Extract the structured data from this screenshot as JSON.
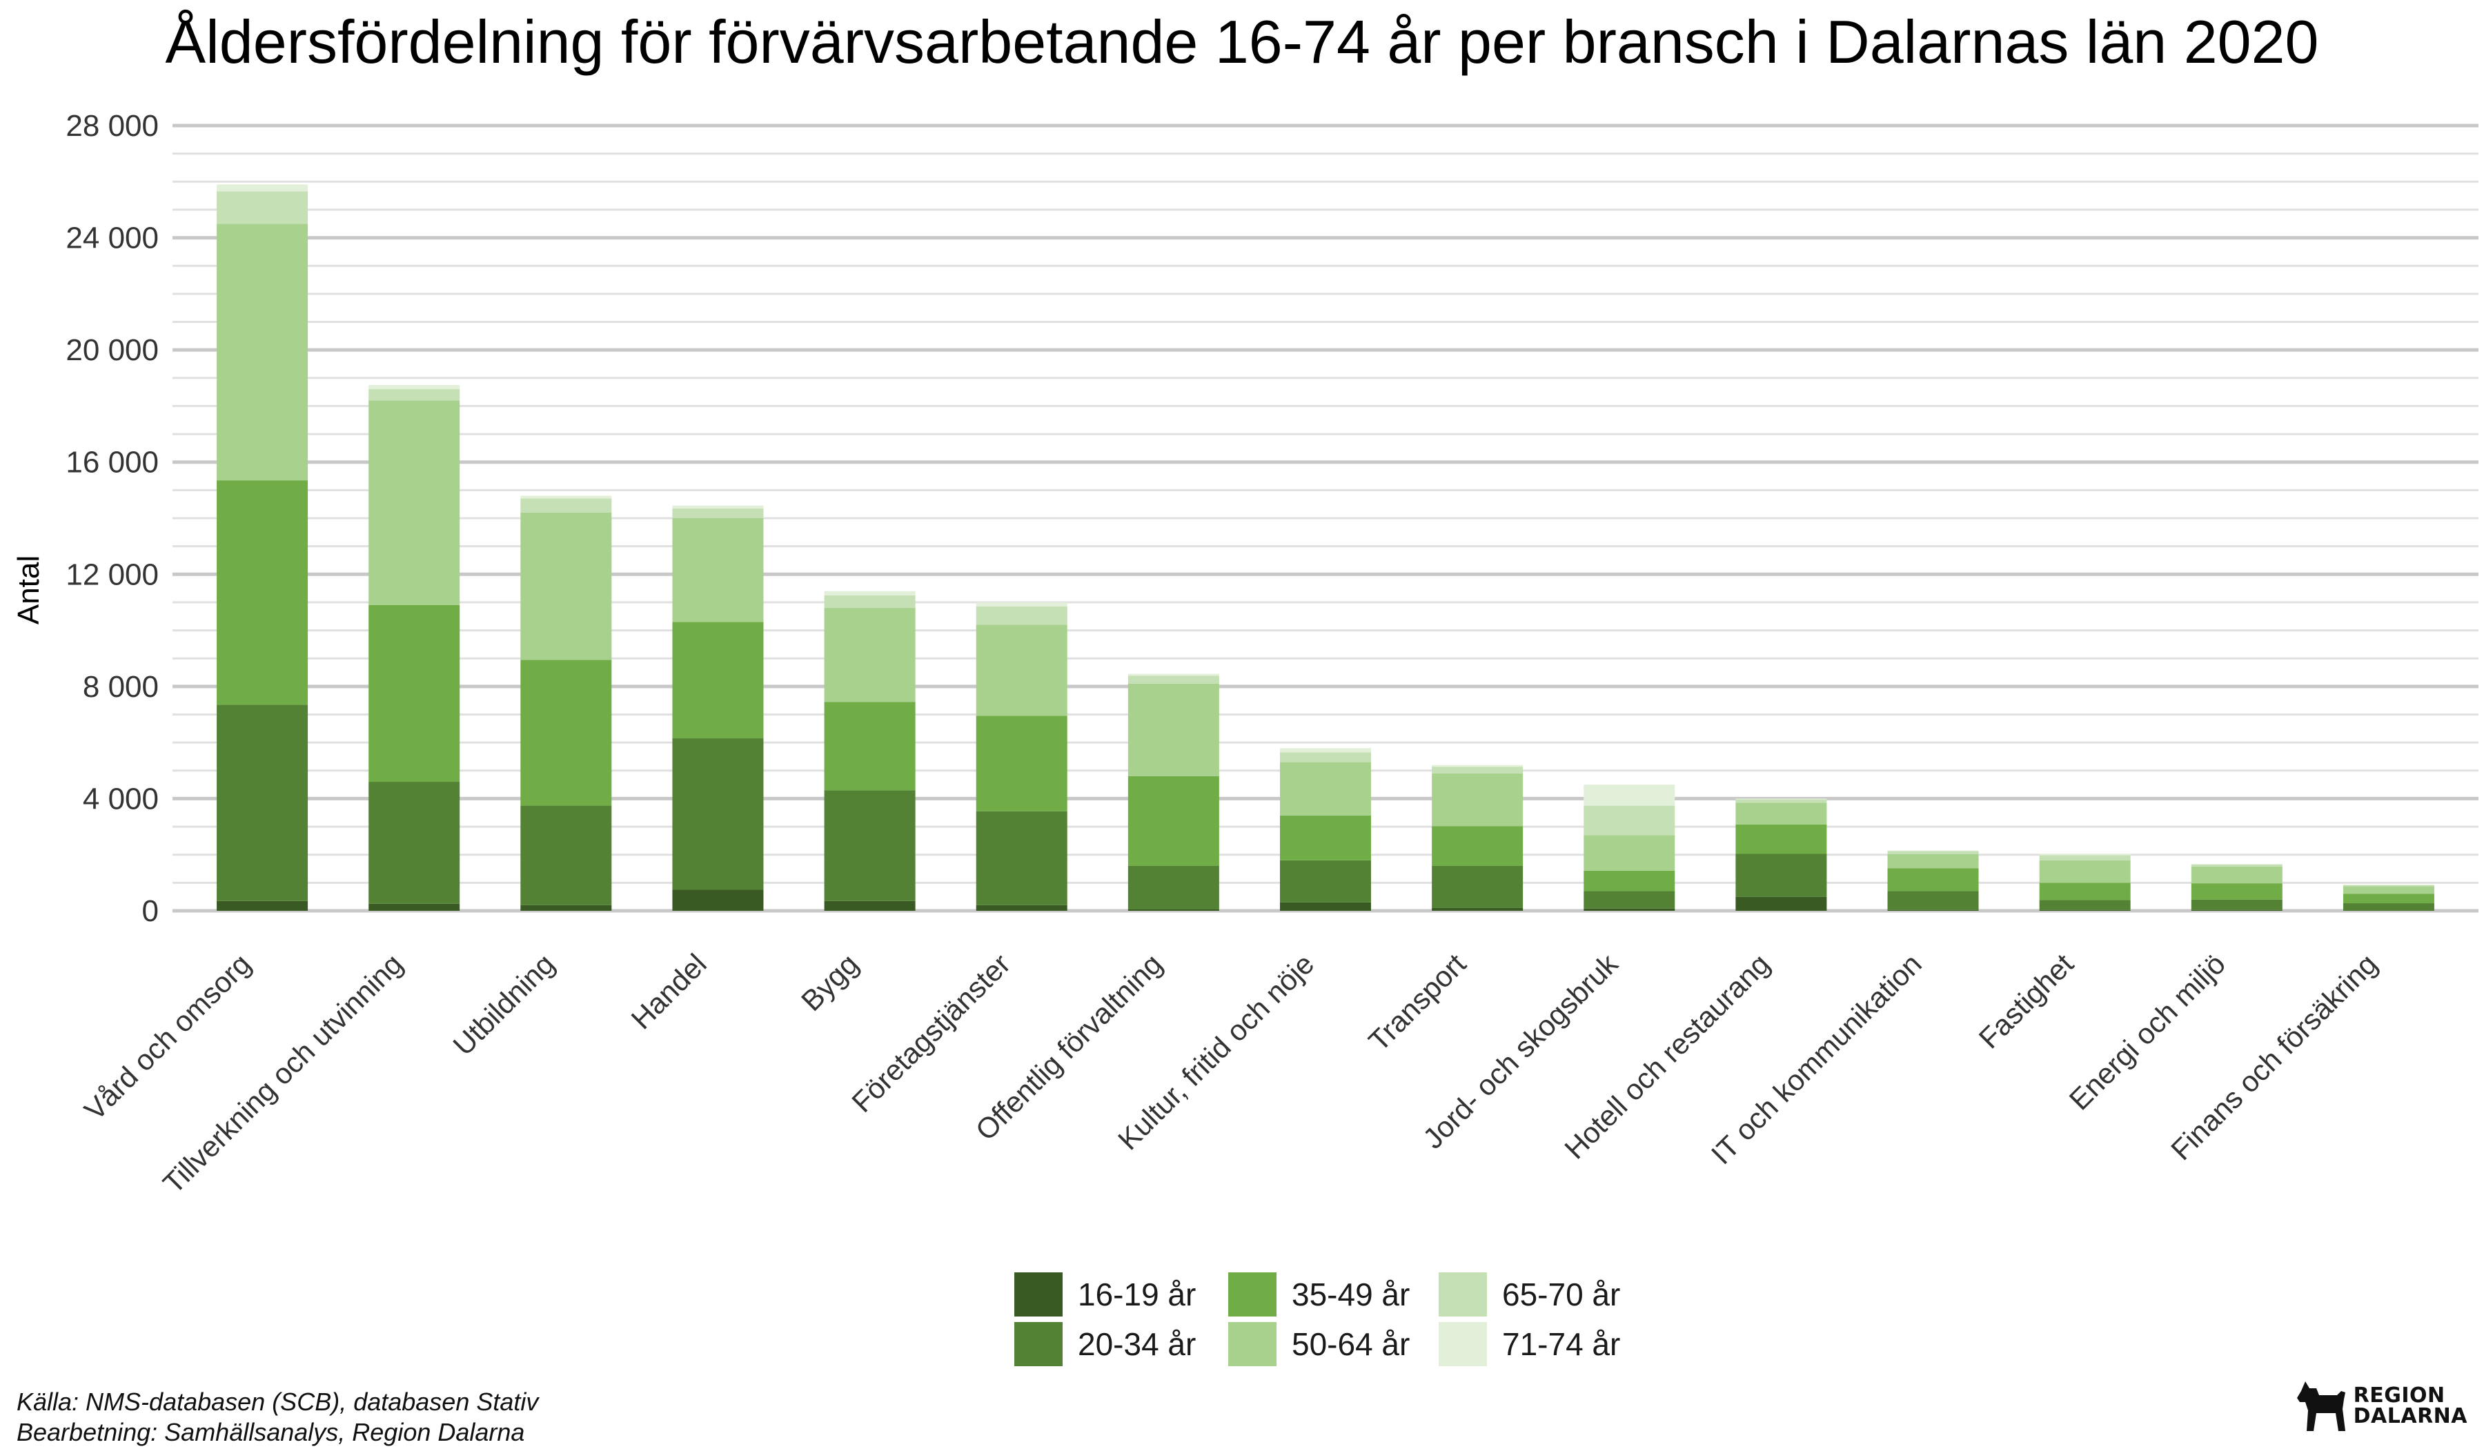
{
  "chart_data": {
    "type": "bar",
    "stacked": true,
    "title": "Åldersfördelning för förvärvsarbetande 16-74 år per bransch i Dalarnas län 2020",
    "xlabel": "",
    "ylabel": "Antal",
    "ylim": [
      0,
      28000
    ],
    "yticks": [
      0,
      4000,
      8000,
      12000,
      16000,
      20000,
      24000,
      28000
    ],
    "ytick_labels": [
      "0",
      "4 000",
      "8 000",
      "12 000",
      "16 000",
      "20 000",
      "24 000",
      "28 000"
    ],
    "grid": true,
    "legend_position": "bottom",
    "categories": [
      "Vård och omsorg",
      "Tillverkning och utvinning",
      "Utbildning",
      "Handel",
      "Bygg",
      "Företagstjänster",
      "Offentlig förvaltning",
      "Kultur, fritid och nöje",
      "Transport",
      "Jord- och skogsbruk",
      "Hotell och restaurang",
      "IT och kommunikation",
      "Fastighet",
      "Energi och miljö",
      "Finans och försäkring"
    ],
    "series": [
      {
        "name": "16-19 år",
        "color": "#3a5a24",
        "values": [
          350,
          250,
          200,
          750,
          350,
          200,
          50,
          300,
          100,
          80,
          500,
          30,
          30,
          30,
          15
        ]
      },
      {
        "name": "20-34 år",
        "color": "#548235",
        "values": [
          7000,
          4350,
          3550,
          5400,
          3950,
          3350,
          1550,
          1500,
          1500,
          620,
          1530,
          670,
          350,
          370,
          255
        ]
      },
      {
        "name": "35-49 år",
        "color": "#70ad47",
        "values": [
          8000,
          6300,
          5200,
          4150,
          3150,
          3400,
          3200,
          1600,
          1420,
          730,
          1050,
          820,
          620,
          580,
          340
        ]
      },
      {
        "name": "50-64 år",
        "color": "#a9d18e",
        "values": [
          9150,
          7300,
          5250,
          3700,
          3350,
          3250,
          3300,
          1900,
          1880,
          1270,
          770,
          500,
          800,
          600,
          270
        ]
      },
      {
        "name": "65-70 år",
        "color": "#c5e0b4",
        "values": [
          1150,
          400,
          500,
          350,
          450,
          650,
          280,
          350,
          230,
          1050,
          120,
          110,
          180,
          70,
          40
        ]
      },
      {
        "name": "71-74 år",
        "color": "#e2f0d9",
        "values": [
          250,
          150,
          100,
          100,
          150,
          150,
          70,
          150,
          70,
          750,
          30,
          20,
          50,
          20,
          10
        ]
      }
    ]
  },
  "footer": {
    "source": "Källa: NMS-databasen (SCB), databasen Stativ",
    "processing": "Bearbetning: Samhällsanalys, Region Dalarna"
  },
  "logo": {
    "line1": "REGION",
    "line2": "DALARNA",
    "icon": "dala-horse-icon"
  }
}
